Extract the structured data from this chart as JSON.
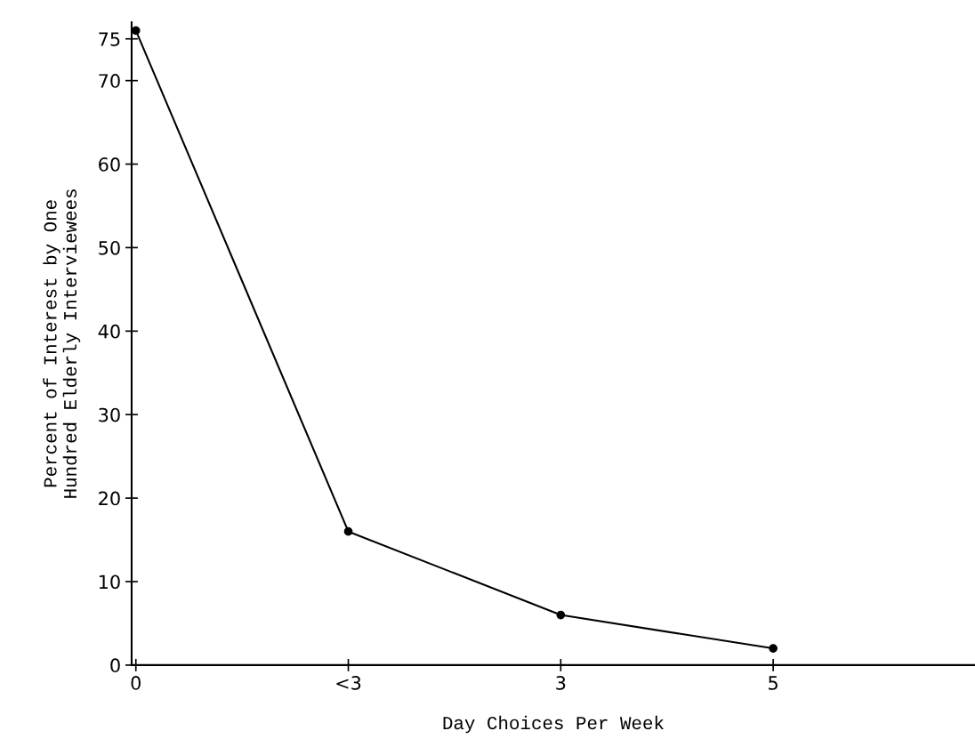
{
  "chart_data": {
    "type": "line",
    "xlabel": "Day Choices Per Week",
    "ylabel": "Percent of Interest by One\nHundred Elderly Interviewees",
    "categories": [
      "0",
      "<3",
      "3",
      "5"
    ],
    "series": [
      {
        "color": "#000000",
        "values": [
          76,
          16,
          6,
          2
        ]
      }
    ],
    "ylim": [
      0,
      77
    ],
    "yticks": [
      0,
      10,
      20,
      30,
      40,
      50,
      60,
      70,
      75
    ],
    "grid": false,
    "marker": "circle",
    "line_style": "solid"
  }
}
